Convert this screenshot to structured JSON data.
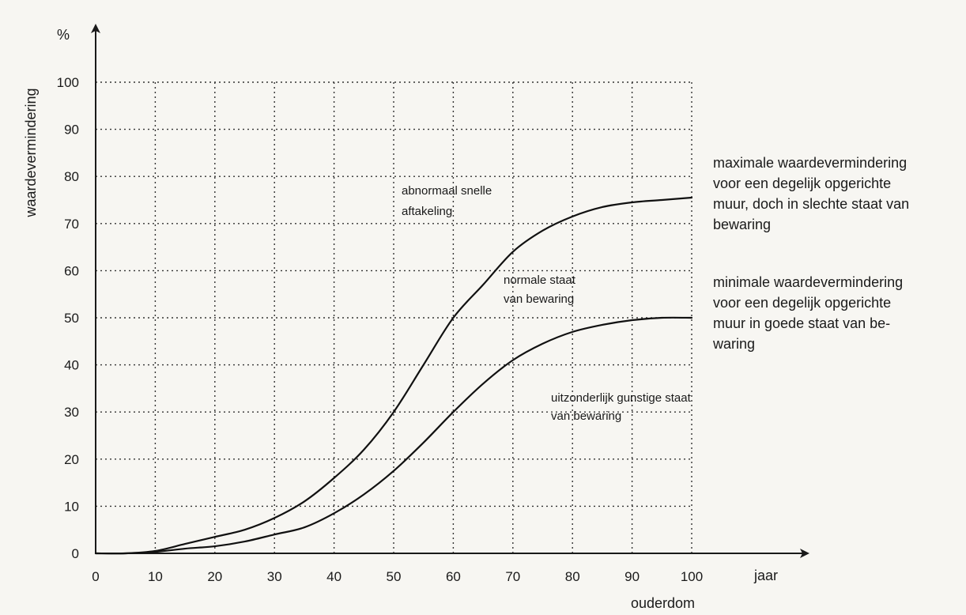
{
  "chart_data": {
    "type": "line",
    "title": "",
    "x_tick_labels": [
      "0",
      "10",
      "20",
      "30",
      "40",
      "50",
      "60",
      "70",
      "80",
      "90",
      "100"
    ],
    "y_tick_labels": [
      "0",
      "10",
      "20",
      "30",
      "40",
      "50",
      "60",
      "70",
      "80",
      "90",
      "100"
    ],
    "xlim": [
      0,
      100
    ],
    "ylim": [
      0,
      100
    ],
    "x_unit": "jaar",
    "xlabel": "ouderdom",
    "y_unit": "%",
    "ylabel": "waardevermindering",
    "grid": true,
    "grid_style": "dotted",
    "series": [
      {
        "x": [
          0,
          5,
          10,
          15,
          20,
          25,
          30,
          35,
          40,
          45,
          50,
          55,
          60,
          65,
          70,
          75,
          80,
          85,
          90,
          95,
          100
        ],
        "y": [
          0,
          0,
          0.5,
          2,
          3.5,
          5,
          7.5,
          11,
          16,
          22,
          30,
          40,
          50,
          57,
          64,
          68.5,
          71.5,
          73.5,
          74.5,
          75,
          75.5
        ]
      },
      {
        "x": [
          0,
          5,
          10,
          15,
          20,
          25,
          30,
          35,
          40,
          45,
          50,
          55,
          60,
          65,
          70,
          75,
          80,
          85,
          90,
          95,
          100
        ],
        "y": [
          0,
          0,
          0.3,
          1,
          1.5,
          2.5,
          4,
          5.5,
          8.5,
          12.5,
          17.5,
          23.5,
          30,
          36,
          41,
          44.5,
          47,
          48.5,
          49.5,
          50,
          50
        ]
      }
    ],
    "annotations": {
      "abnormal": [
        "abnormaal snelle",
        "aftakeling"
      ],
      "normal": [
        "normale staat",
        "van bewaring"
      ],
      "exceptional": [
        "uitzonderlijk gunstige staat",
        "van bewaring"
      ],
      "max_note": [
        "maximale waardevermindering",
        "voor een degelijk opgerichte",
        "muur, doch in slechte staat van",
        "bewaring"
      ],
      "min_note": [
        "minimale waardevermindering",
        "voor een degelijk opgerichte",
        "muur in goede staat van be-",
        "waring"
      ]
    }
  }
}
